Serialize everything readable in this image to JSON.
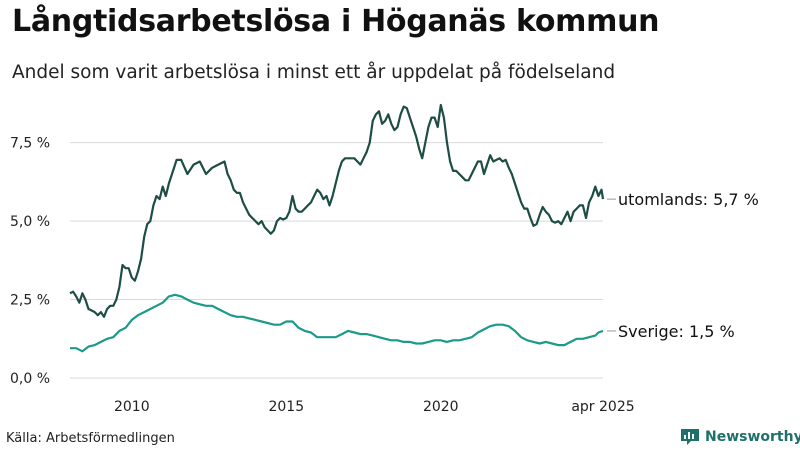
{
  "title": "Långtidsarbetslösa i Höganäs kommun",
  "subtitle": "Andel som varit arbetslösa i minst ett år uppdelat på födelseland",
  "source": "Källa: Arbetsförmedlingen",
  "brand": "Newsworthy",
  "colors": {
    "utomlands": "#1d4d44",
    "sverige": "#1b9a8a",
    "grid": "#d9d9d9",
    "brand": "#1f6f6a"
  },
  "chart_data": {
    "type": "line",
    "x_unit": "year (decimal)",
    "xlim": [
      2008.0,
      2025.25
    ],
    "ylim": [
      0,
      8.7
    ],
    "x_ticks": [
      {
        "value": 2010,
        "label": "2010"
      },
      {
        "value": 2015,
        "label": "2015"
      },
      {
        "value": 2020,
        "label": "2020"
      },
      {
        "value": 2025.25,
        "label": "apr 2025"
      }
    ],
    "y_ticks": [
      {
        "value": 0,
        "label": "0,0 %"
      },
      {
        "value": 2.5,
        "label": "2,5 %"
      },
      {
        "value": 5.0,
        "label": "5,0 %"
      },
      {
        "value": 7.5,
        "label": "7,5 %"
      }
    ],
    "grid": true,
    "series": [
      {
        "name": "utomlands",
        "end_label": "utomlands: 5,7 %",
        "color": "#1d4d44",
        "points": [
          [
            2008.0,
            2.7
          ],
          [
            2008.1,
            2.75
          ],
          [
            2008.2,
            2.6
          ],
          [
            2008.3,
            2.4
          ],
          [
            2008.4,
            2.7
          ],
          [
            2008.5,
            2.5
          ],
          [
            2008.6,
            2.2
          ],
          [
            2008.7,
            2.15
          ],
          [
            2008.8,
            2.1
          ],
          [
            2008.9,
            2.0
          ],
          [
            2009.0,
            2.1
          ],
          [
            2009.1,
            1.95
          ],
          [
            2009.2,
            2.2
          ],
          [
            2009.3,
            2.3
          ],
          [
            2009.4,
            2.3
          ],
          [
            2009.5,
            2.5
          ],
          [
            2009.6,
            2.9
          ],
          [
            2009.7,
            3.6
          ],
          [
            2009.8,
            3.5
          ],
          [
            2009.9,
            3.5
          ],
          [
            2010.0,
            3.2
          ],
          [
            2010.1,
            3.1
          ],
          [
            2010.2,
            3.4
          ],
          [
            2010.3,
            3.8
          ],
          [
            2010.4,
            4.5
          ],
          [
            2010.5,
            4.9
          ],
          [
            2010.6,
            5.0
          ],
          [
            2010.7,
            5.5
          ],
          [
            2010.8,
            5.8
          ],
          [
            2010.9,
            5.7
          ],
          [
            2011.0,
            6.1
          ],
          [
            2011.1,
            5.8
          ],
          [
            2011.2,
            6.2
          ],
          [
            2011.3,
            6.5
          ],
          [
            2011.45,
            6.95
          ],
          [
            2011.6,
            6.95
          ],
          [
            2011.8,
            6.5
          ],
          [
            2012.0,
            6.8
          ],
          [
            2012.2,
            6.9
          ],
          [
            2012.4,
            6.5
          ],
          [
            2012.6,
            6.7
          ],
          [
            2012.8,
            6.8
          ],
          [
            2013.0,
            6.9
          ],
          [
            2013.1,
            6.5
          ],
          [
            2013.2,
            6.3
          ],
          [
            2013.3,
            6.0
          ],
          [
            2013.4,
            5.9
          ],
          [
            2013.5,
            5.9
          ],
          [
            2013.6,
            5.6
          ],
          [
            2013.7,
            5.4
          ],
          [
            2013.8,
            5.2
          ],
          [
            2013.9,
            5.1
          ],
          [
            2014.0,
            5.0
          ],
          [
            2014.1,
            4.9
          ],
          [
            2014.2,
            5.0
          ],
          [
            2014.3,
            4.8
          ],
          [
            2014.4,
            4.7
          ],
          [
            2014.5,
            4.6
          ],
          [
            2014.6,
            4.7
          ],
          [
            2014.7,
            5.0
          ],
          [
            2014.8,
            5.1
          ],
          [
            2014.9,
            5.05
          ],
          [
            2015.0,
            5.1
          ],
          [
            2015.1,
            5.3
          ],
          [
            2015.2,
            5.8
          ],
          [
            2015.3,
            5.4
          ],
          [
            2015.4,
            5.3
          ],
          [
            2015.5,
            5.3
          ],
          [
            2015.6,
            5.4
          ],
          [
            2015.7,
            5.5
          ],
          [
            2015.8,
            5.6
          ],
          [
            2015.9,
            5.8
          ],
          [
            2016.0,
            6.0
          ],
          [
            2016.1,
            5.9
          ],
          [
            2016.2,
            5.7
          ],
          [
            2016.3,
            5.8
          ],
          [
            2016.4,
            5.5
          ],
          [
            2016.5,
            5.8
          ],
          [
            2016.6,
            6.2
          ],
          [
            2016.7,
            6.6
          ],
          [
            2016.8,
            6.9
          ],
          [
            2016.9,
            7.0
          ],
          [
            2017.0,
            7.0
          ],
          [
            2017.1,
            7.0
          ],
          [
            2017.2,
            7.0
          ],
          [
            2017.3,
            6.9
          ],
          [
            2017.4,
            6.8
          ],
          [
            2017.5,
            7.0
          ],
          [
            2017.6,
            7.2
          ],
          [
            2017.7,
            7.5
          ],
          [
            2017.8,
            8.2
          ],
          [
            2017.9,
            8.4
          ],
          [
            2018.0,
            8.5
          ],
          [
            2018.1,
            8.1
          ],
          [
            2018.2,
            8.2
          ],
          [
            2018.3,
            8.4
          ],
          [
            2018.4,
            8.1
          ],
          [
            2018.5,
            7.9
          ],
          [
            2018.6,
            8.0
          ],
          [
            2018.7,
            8.4
          ],
          [
            2018.8,
            8.65
          ],
          [
            2018.9,
            8.6
          ],
          [
            2019.0,
            8.3
          ],
          [
            2019.1,
            8.0
          ],
          [
            2019.2,
            7.7
          ],
          [
            2019.3,
            7.3
          ],
          [
            2019.4,
            7.0
          ],
          [
            2019.5,
            7.5
          ],
          [
            2019.6,
            8.0
          ],
          [
            2019.7,
            8.3
          ],
          [
            2019.8,
            8.3
          ],
          [
            2019.9,
            8.0
          ],
          [
            2020.0,
            8.7
          ],
          [
            2020.1,
            8.3
          ],
          [
            2020.2,
            7.5
          ],
          [
            2020.3,
            6.9
          ],
          [
            2020.4,
            6.6
          ],
          [
            2020.5,
            6.6
          ],
          [
            2020.6,
            6.5
          ],
          [
            2020.7,
            6.4
          ],
          [
            2020.8,
            6.3
          ],
          [
            2020.9,
            6.3
          ],
          [
            2021.0,
            6.5
          ],
          [
            2021.1,
            6.7
          ],
          [
            2021.2,
            6.9
          ],
          [
            2021.3,
            6.9
          ],
          [
            2021.4,
            6.5
          ],
          [
            2021.5,
            6.8
          ],
          [
            2021.6,
            7.1
          ],
          [
            2021.7,
            6.9
          ],
          [
            2021.8,
            6.95
          ],
          [
            2021.9,
            7.0
          ],
          [
            2022.0,
            6.9
          ],
          [
            2022.1,
            6.95
          ],
          [
            2022.2,
            6.7
          ],
          [
            2022.3,
            6.5
          ],
          [
            2022.4,
            6.2
          ],
          [
            2022.5,
            5.9
          ],
          [
            2022.6,
            5.6
          ],
          [
            2022.7,
            5.4
          ],
          [
            2022.8,
            5.4
          ],
          [
            2022.9,
            5.1
          ],
          [
            2023.0,
            4.85
          ],
          [
            2023.1,
            4.9
          ],
          [
            2023.2,
            5.2
          ],
          [
            2023.3,
            5.45
          ],
          [
            2023.4,
            5.3
          ],
          [
            2023.5,
            5.2
          ],
          [
            2023.6,
            5.0
          ],
          [
            2023.7,
            4.95
          ],
          [
            2023.8,
            5.0
          ],
          [
            2023.9,
            4.9
          ],
          [
            2024.0,
            5.1
          ],
          [
            2024.1,
            5.3
          ],
          [
            2024.2,
            5.0
          ],
          [
            2024.3,
            5.3
          ],
          [
            2024.4,
            5.4
          ],
          [
            2024.5,
            5.5
          ],
          [
            2024.6,
            5.5
          ],
          [
            2024.7,
            5.1
          ],
          [
            2024.8,
            5.6
          ],
          [
            2024.9,
            5.8
          ],
          [
            2025.0,
            6.1
          ],
          [
            2025.1,
            5.8
          ],
          [
            2025.2,
            6.0
          ],
          [
            2025.25,
            5.7
          ]
        ]
      },
      {
        "name": "Sverige",
        "end_label": "Sverige: 1,5 %",
        "color": "#1b9a8a",
        "points": [
          [
            2008.0,
            0.95
          ],
          [
            2008.2,
            0.95
          ],
          [
            2008.4,
            0.85
          ],
          [
            2008.6,
            1.0
          ],
          [
            2008.8,
            1.05
          ],
          [
            2009.0,
            1.15
          ],
          [
            2009.2,
            1.25
          ],
          [
            2009.4,
            1.3
          ],
          [
            2009.6,
            1.5
          ],
          [
            2009.8,
            1.6
          ],
          [
            2010.0,
            1.85
          ],
          [
            2010.2,
            2.0
          ],
          [
            2010.4,
            2.1
          ],
          [
            2010.6,
            2.2
          ],
          [
            2010.8,
            2.3
          ],
          [
            2011.0,
            2.4
          ],
          [
            2011.2,
            2.6
          ],
          [
            2011.4,
            2.65
          ],
          [
            2011.6,
            2.6
          ],
          [
            2011.8,
            2.5
          ],
          [
            2012.0,
            2.4
          ],
          [
            2012.2,
            2.35
          ],
          [
            2012.4,
            2.3
          ],
          [
            2012.6,
            2.3
          ],
          [
            2012.8,
            2.2
          ],
          [
            2013.0,
            2.1
          ],
          [
            2013.2,
            2.0
          ],
          [
            2013.4,
            1.95
          ],
          [
            2013.6,
            1.95
          ],
          [
            2013.8,
            1.9
          ],
          [
            2014.0,
            1.85
          ],
          [
            2014.2,
            1.8
          ],
          [
            2014.4,
            1.75
          ],
          [
            2014.6,
            1.7
          ],
          [
            2014.8,
            1.7
          ],
          [
            2015.0,
            1.8
          ],
          [
            2015.2,
            1.8
          ],
          [
            2015.4,
            1.6
          ],
          [
            2015.6,
            1.5
          ],
          [
            2015.8,
            1.45
          ],
          [
            2016.0,
            1.3
          ],
          [
            2016.2,
            1.3
          ],
          [
            2016.4,
            1.3
          ],
          [
            2016.6,
            1.3
          ],
          [
            2016.8,
            1.4
          ],
          [
            2017.0,
            1.5
          ],
          [
            2017.2,
            1.45
          ],
          [
            2017.4,
            1.4
          ],
          [
            2017.6,
            1.4
          ],
          [
            2017.8,
            1.35
          ],
          [
            2018.0,
            1.3
          ],
          [
            2018.2,
            1.25
          ],
          [
            2018.4,
            1.2
          ],
          [
            2018.6,
            1.2
          ],
          [
            2018.8,
            1.15
          ],
          [
            2019.0,
            1.15
          ],
          [
            2019.2,
            1.1
          ],
          [
            2019.4,
            1.1
          ],
          [
            2019.6,
            1.15
          ],
          [
            2019.8,
            1.2
          ],
          [
            2020.0,
            1.2
          ],
          [
            2020.2,
            1.15
          ],
          [
            2020.4,
            1.2
          ],
          [
            2020.6,
            1.2
          ],
          [
            2020.8,
            1.25
          ],
          [
            2021.0,
            1.3
          ],
          [
            2021.2,
            1.45
          ],
          [
            2021.4,
            1.55
          ],
          [
            2021.6,
            1.65
          ],
          [
            2021.8,
            1.7
          ],
          [
            2022.0,
            1.7
          ],
          [
            2022.2,
            1.65
          ],
          [
            2022.4,
            1.5
          ],
          [
            2022.6,
            1.3
          ],
          [
            2022.8,
            1.2
          ],
          [
            2023.0,
            1.15
          ],
          [
            2023.2,
            1.1
          ],
          [
            2023.4,
            1.15
          ],
          [
            2023.6,
            1.1
          ],
          [
            2023.8,
            1.05
          ],
          [
            2024.0,
            1.05
          ],
          [
            2024.2,
            1.15
          ],
          [
            2024.4,
            1.25
          ],
          [
            2024.6,
            1.25
          ],
          [
            2024.8,
            1.3
          ],
          [
            2025.0,
            1.35
          ],
          [
            2025.1,
            1.45
          ],
          [
            2025.25,
            1.5
          ]
        ]
      }
    ]
  }
}
